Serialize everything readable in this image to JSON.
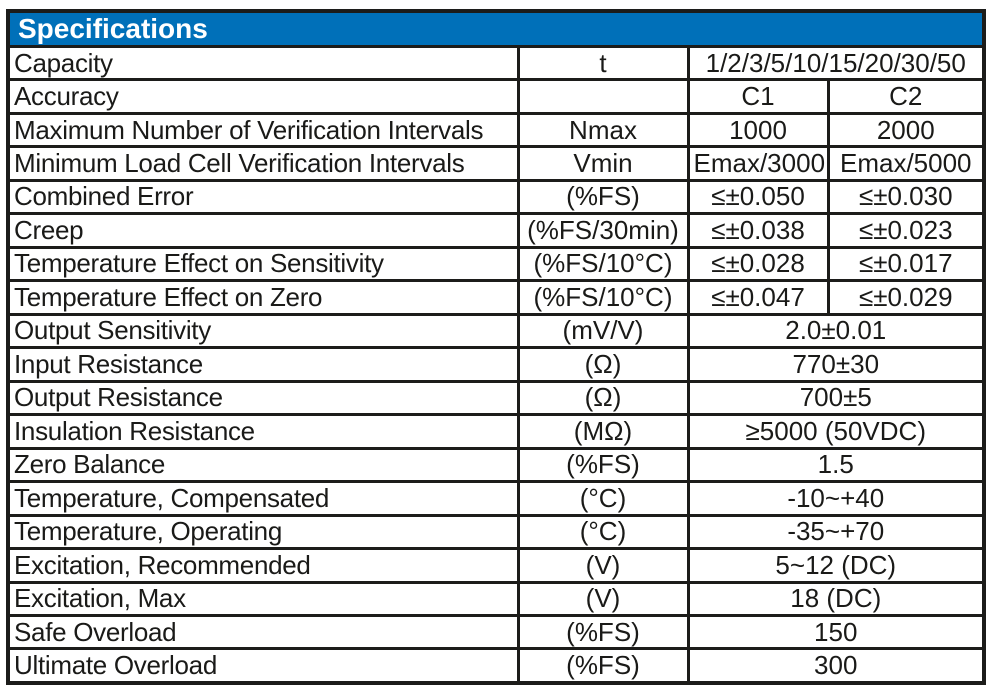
{
  "title": "Specifications",
  "colors": {
    "header_bg": "#0070b9",
    "header_fg": "#ffffff",
    "border": "#1c1c1a",
    "text": "#1a1a18"
  },
  "table": {
    "rows": [
      {
        "label": "Capacity",
        "unit": "t",
        "values": [
          "1/2/3/5/10/15/20/30/50"
        ]
      },
      {
        "label": "Accuracy",
        "unit": "",
        "values": [
          "C1",
          "C2"
        ]
      },
      {
        "label": "Maximum Number of Verification Intervals",
        "unit": "Nmax",
        "values": [
          "1000",
          "2000"
        ]
      },
      {
        "label": "Minimum Load Cell Verification Intervals",
        "unit": "Vmin",
        "values": [
          "Emax/3000",
          "Emax/5000"
        ]
      },
      {
        "label": "Combined Error",
        "unit": "(%FS)",
        "values": [
          "≤±0.050",
          "≤±0.030"
        ]
      },
      {
        "label": "Creep",
        "unit": "(%FS/30min)",
        "values": [
          "≤±0.038",
          "≤±0.023"
        ]
      },
      {
        "label": "Temperature Effect on Sensitivity",
        "unit": "(%FS/10°C)",
        "values": [
          "≤±0.028",
          "≤±0.017"
        ]
      },
      {
        "label": "Temperature Effect on Zero",
        "unit": "(%FS/10°C)",
        "values": [
          "≤±0.047",
          "≤±0.029"
        ]
      },
      {
        "label": "Output Sensitivity",
        "unit": "(mV/V)",
        "values": [
          "2.0±0.01"
        ]
      },
      {
        "label": "Input Resistance",
        "unit": "(Ω)",
        "values": [
          "770±30"
        ]
      },
      {
        "label": "Output Resistance",
        "unit": "(Ω)",
        "values": [
          "700±5"
        ]
      },
      {
        "label": "Insulation Resistance",
        "unit": "(MΩ)",
        "values": [
          "≥5000 (50VDC)"
        ]
      },
      {
        "label": "Zero Balance",
        "unit": "(%FS)",
        "values": [
          "1.5"
        ]
      },
      {
        "label": "Temperature, Compensated",
        "unit": "(°C)",
        "values": [
          "-10~+40"
        ]
      },
      {
        "label": "Temperature, Operating",
        "unit": "(°C)",
        "values": [
          "-35~+70"
        ]
      },
      {
        "label": "Excitation, Recommended",
        "unit": "(V)",
        "values": [
          "5~12 (DC)"
        ]
      },
      {
        "label": "Excitation, Max",
        "unit": "(V)",
        "values": [
          "18 (DC)"
        ]
      },
      {
        "label": "Safe Overload",
        "unit": "(%FS)",
        "values": [
          "150"
        ]
      },
      {
        "label": "Ultimate Overload",
        "unit": "(%FS)",
        "values": [
          "300"
        ]
      }
    ]
  }
}
